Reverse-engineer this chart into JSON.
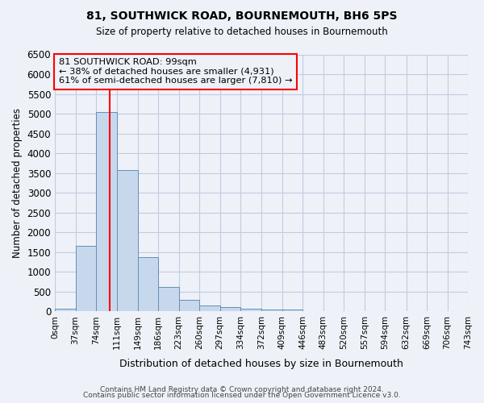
{
  "title": "81, SOUTHWICK ROAD, BOURNEMOUTH, BH6 5PS",
  "subtitle": "Size of property relative to detached houses in Bournemouth",
  "xlabel": "Distribution of detached houses by size in Bournemouth",
  "ylabel": "Number of detached properties",
  "bar_color": "#c8d8ec",
  "bar_edge_color": "#6090bb",
  "grid_color": "#c0cce0",
  "background_color": "#eef2f8",
  "plot_bg_color": "#eef2f8",
  "red_line_x": 99,
  "annotation_title": "81 SOUTHWICK ROAD: 99sqm",
  "annotation_line1": "← 38% of detached houses are smaller (4,931)",
  "annotation_line2": "61% of semi-detached houses are larger (7,810) →",
  "bin_edges": [
    0,
    37,
    74,
    111,
    149,
    186,
    223,
    260,
    297,
    334,
    372,
    409,
    446,
    483,
    520,
    557,
    594,
    632,
    669,
    706,
    743
  ],
  "bin_counts": [
    70,
    1650,
    5050,
    3580,
    1380,
    615,
    290,
    155,
    110,
    70,
    55,
    55,
    0,
    0,
    0,
    0,
    0,
    0,
    0,
    0
  ],
  "ylim": [
    0,
    6500
  ],
  "yticks": [
    0,
    500,
    1000,
    1500,
    2000,
    2500,
    3000,
    3500,
    4000,
    4500,
    5000,
    5500,
    6000,
    6500
  ],
  "xtick_labels": [
    "0sqm",
    "37sqm",
    "74sqm",
    "111sqm",
    "149sqm",
    "186sqm",
    "223sqm",
    "260sqm",
    "297sqm",
    "334sqm",
    "372sqm",
    "409sqm",
    "446sqm",
    "483sqm",
    "520sqm",
    "557sqm",
    "594sqm",
    "632sqm",
    "669sqm",
    "706sqm",
    "743sqm"
  ],
  "footer1": "Contains HM Land Registry data © Crown copyright and database right 2024.",
  "footer2": "Contains public sector information licensed under the Open Government Licence v3.0."
}
